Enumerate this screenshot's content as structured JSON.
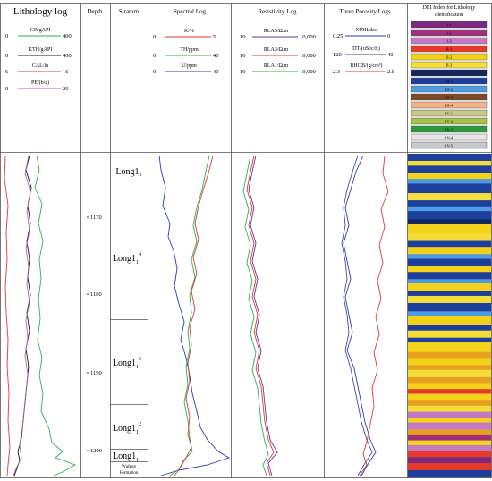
{
  "headers": {
    "lithology": "Lithology log",
    "depth": "Depth",
    "stratum": "Stratum",
    "spectral": "Spectral Log",
    "resistivity": "Resistivity Log",
    "porosity": "Three Porosity Logs",
    "dei_line1": "DEI Index for Lithology",
    "dei_line2": "Identification"
  },
  "curves": {
    "lithology": [
      {
        "name": "GR/gAPI",
        "min": "0",
        "max": "400",
        "color": "#2bb24c"
      },
      {
        "name": "KTH/gAPI",
        "min": "0",
        "max": "400",
        "color": "#1a1a1a"
      },
      {
        "name": "CAL/in",
        "min": "6",
        "max": "16",
        "color": "#e03a3a"
      },
      {
        "name": "PE/(b/e)",
        "min": "0",
        "max": "20",
        "color": "#b060c0"
      }
    ],
    "spectral": [
      {
        "name": "K/%",
        "min": "0",
        "max": "5",
        "color": "#e03a3a"
      },
      {
        "name": "TH/ppm",
        "min": "0",
        "max": "40",
        "color": "#2bb24c"
      },
      {
        "name": "U/ppm",
        "min": "0",
        "max": "40",
        "color": "#2b3ab8"
      }
    ],
    "resistivity": [
      {
        "name": "RLA5/Ω.m",
        "min": "10",
        "max": "10,000",
        "color": "#6a2fa0"
      },
      {
        "name": "RLA3/Ω.m",
        "min": "10",
        "max": "10,000",
        "color": "#e03a3a"
      },
      {
        "name": "RLA1/Ω.m",
        "min": "10",
        "max": "10,000",
        "color": "#2bb24c"
      }
    ],
    "porosity": [
      {
        "name": "NPHI/dec",
        "min": "0.25",
        "max": "0",
        "color": "#2b3ab8"
      },
      {
        "name": "DT/(uSec/ft)",
        "min": "120",
        "max": "40",
        "color": "#2b3ab8"
      },
      {
        "name": "RHOB/(g/cm³)",
        "min": "2.3",
        "max": "2.8",
        "color": "#e03a3a"
      }
    ]
  },
  "dei_legend": [
    {
      "label": "I-1",
      "color": "#7b2a7e"
    },
    {
      "label": "I-2",
      "color": "#a0307a"
    },
    {
      "label": "I-3",
      "color": "#c57ac5"
    },
    {
      "label": "II-1",
      "color": "#e83a2a"
    },
    {
      "label": "II-2",
      "color": "#f4d21a"
    },
    {
      "label": "II-3",
      "color": "#f6de3a"
    },
    {
      "label": "",
      "color": "#13275e"
    },
    {
      "label": "III-1",
      "color": "#1b3f9a"
    },
    {
      "label": "III-2",
      "color": "#4d9be0"
    },
    {
      "label": "III-3",
      "color": "#7a4a2a"
    },
    {
      "label": "III-4",
      "color": "#f4b389"
    },
    {
      "label": "IV-1",
      "color": "#c8c88a"
    },
    {
      "label": "IV-2",
      "color": "#a6c24a"
    },
    {
      "label": "IV-3",
      "color": "#2d9a3a"
    },
    {
      "label": "IV-4",
      "color": "#e6e6e6"
    },
    {
      "label": "IV-5",
      "color": "#c8c8c8"
    }
  ],
  "depth_ticks": [
    "1170",
    "1180",
    "1190",
    "1200"
  ],
  "strata": [
    {
      "base": "Long1",
      "sub": "2",
      "sup": ""
    },
    {
      "base": "Long1",
      "sub": "1",
      "sup": "4"
    },
    {
      "base": "Long1",
      "sub": "1",
      "sup": "3"
    },
    {
      "base": "Long1",
      "sub": "1",
      "sup": "2"
    },
    {
      "base": "Long1",
      "sub": "1",
      "sup": "1"
    }
  ],
  "formation": {
    "line1": "Wufeng",
    "line2": "Formation"
  }
}
